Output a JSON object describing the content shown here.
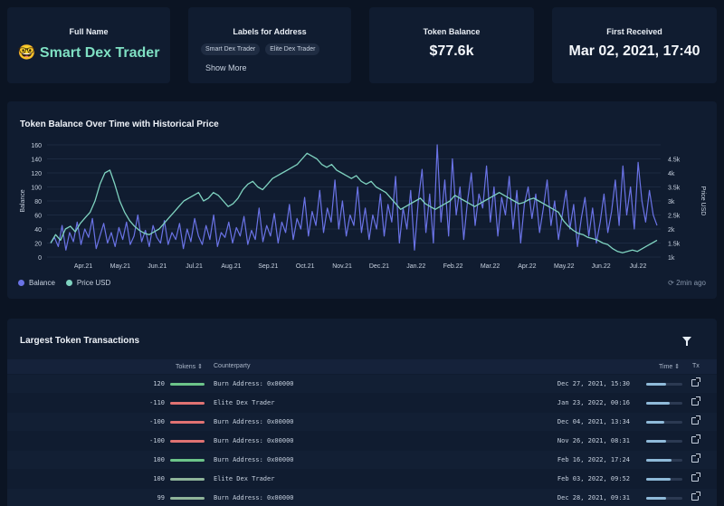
{
  "stats": {
    "full_name": {
      "title": "Full Name",
      "emoji": "🤓",
      "value": "Smart Dex Trader"
    },
    "labels": {
      "title": "Labels for Address",
      "tags": [
        "Smart Dex Trader",
        "Elite Dex Trader"
      ],
      "show_more": "Show More"
    },
    "balance": {
      "title": "Token Balance",
      "value": "$77.6k"
    },
    "first_received": {
      "title": "First Received",
      "value": "Mar 02, 2021, 17:40"
    }
  },
  "chart": {
    "title": "Token Balance Over Time with Historical Price",
    "updated": "2min ago",
    "legend": [
      "Balance",
      "Price USD"
    ]
  },
  "chart_data": {
    "type": "line",
    "title": "Token Balance Over Time with Historical Price",
    "ylabel": "Balance",
    "y2label": "Price USD",
    "ylim": [
      0,
      160
    ],
    "y2lim": [
      1000,
      5000
    ],
    "y_ticks": [
      "0",
      "20",
      "40",
      "60",
      "80",
      "100",
      "120",
      "140",
      "160"
    ],
    "y2_ticks": [
      "1k",
      "1.5k",
      "2k",
      "2.5k",
      "3k",
      "3.5k",
      "4k",
      "4.5k"
    ],
    "x_ticks": [
      "Apr.21",
      "May.21",
      "Jun.21",
      "Jul.21",
      "Aug.21",
      "Sep.21",
      "Oct.21",
      "Nov.21",
      "Dec.21",
      "Jan.22",
      "Feb.22",
      "Mar.22",
      "Apr.22",
      "May.22",
      "Jun.22",
      "Jul.22"
    ],
    "colors": {
      "balance": "#6a73e6",
      "price": "#7fd3c0"
    },
    "legend_position": "bottom-left",
    "series": [
      {
        "name": "Balance",
        "axis": "left",
        "values": [
          20,
          28,
          15,
          45,
          10,
          35,
          22,
          50,
          18,
          40,
          28,
          55,
          12,
          30,
          48,
          20,
          35,
          15,
          42,
          25,
          50,
          18,
          30,
          60,
          22,
          38,
          15,
          45,
          28,
          20,
          52,
          18,
          35,
          25,
          48,
          12,
          40,
          22,
          55,
          30,
          18,
          45,
          25,
          60,
          15,
          35,
          28,
          50,
          20,
          42,
          30,
          58,
          18,
          38,
          25,
          70,
          22,
          45,
          30,
          62,
          20,
          50,
          35,
          75,
          25,
          55,
          40,
          85,
          30,
          65,
          45,
          95,
          35,
          70,
          50,
          110,
          40,
          80,
          30,
          60,
          45,
          100,
          35,
          70,
          25,
          60,
          40,
          90,
          30,
          75,
          50,
          115,
          20,
          70,
          40,
          95,
          10,
          80,
          125,
          35,
          90,
          20,
          160,
          50,
          110,
          30,
          140,
          60,
          100,
          25,
          80,
          120,
          45,
          90,
          70,
          130,
          50,
          100,
          30,
          85,
          60,
          115,
          40,
          95,
          20,
          75,
          100,
          55,
          90,
          35,
          70,
          110,
          45,
          80,
          25,
          60,
          95,
          40,
          75,
          15,
          55,
          85,
          30,
          70,
          20,
          50,
          90,
          35,
          65,
          110,
          45,
          130,
          60,
          100,
          40,
          135,
          80,
          50,
          95,
          60,
          45
        ]
      },
      {
        "name": "Price USD",
        "axis": "right",
        "values": [
          1500,
          1800,
          1600,
          2000,
          2100,
          1900,
          2200,
          2400,
          2600,
          3000,
          3600,
          4000,
          4100,
          3600,
          3000,
          2600,
          2300,
          2100,
          1950,
          1850,
          1800,
          1900,
          2000,
          2200,
          2400,
          2600,
          2800,
          3000,
          3100,
          3200,
          3300,
          3000,
          3100,
          3300,
          3200,
          3000,
          2800,
          2900,
          3100,
          3400,
          3600,
          3700,
          3500,
          3400,
          3600,
          3800,
          3900,
          4000,
          4100,
          4200,
          4300,
          4500,
          4700,
          4600,
          4500,
          4300,
          4200,
          4300,
          4100,
          4000,
          3900,
          3800,
          3900,
          3700,
          3600,
          3700,
          3500,
          3400,
          3300,
          3100,
          2900,
          2700,
          2800,
          2900,
          3000,
          3100,
          2900,
          2800,
          2700,
          2800,
          2900,
          3000,
          3200,
          3100,
          3000,
          2900,
          2800,
          2900,
          3000,
          3100,
          3200,
          3300,
          3200,
          3100,
          3000,
          2900,
          2950,
          3050,
          3100,
          3000,
          2900,
          2800,
          2700,
          2600,
          2300,
          2100,
          1950,
          1850,
          1800,
          1700,
          1650,
          1600,
          1500,
          1450,
          1300,
          1200,
          1150,
          1200,
          1250,
          1200,
          1300,
          1400,
          1500,
          1600
        ]
      }
    ]
  },
  "transactions": {
    "title": "Largest Token Transactions",
    "headers": {
      "tokens": "Tokens ⇕",
      "counterparty": "Counterparty",
      "time": "Time ⇕",
      "tx": "Tx"
    },
    "rows": [
      {
        "amount": "120",
        "counterparty": "Burn Address: 0x00000",
        "time": "Dec 27, 2021, 15:30",
        "kind": "in",
        "time_fill": 0.55
      },
      {
        "amount": "-110",
        "counterparty": "Elite Dex Trader",
        "time": "Jan 23, 2022, 00:16",
        "kind": "out",
        "time_fill": 0.65
      },
      {
        "amount": "-100",
        "counterparty": "Burn Address: 0x00000",
        "time": "Dec 04, 2021, 13:34",
        "kind": "out",
        "time_fill": 0.5
      },
      {
        "amount": "-100",
        "counterparty": "Burn Address: 0x00000",
        "time": "Nov 26, 2021, 08:31",
        "kind": "out",
        "time_fill": 0.55
      },
      {
        "amount": "100",
        "counterparty": "Burn Address: 0x00000",
        "time": "Feb 16, 2022, 17:24",
        "kind": "in",
        "time_fill": 0.7
      },
      {
        "amount": "100",
        "counterparty": "Elite Dex Trader",
        "time": "Feb 03, 2022, 09:52",
        "kind": "mid",
        "time_fill": 0.68
      },
      {
        "amount": "99",
        "counterparty": "Burn Address: 0x00000",
        "time": "Dec 28, 2021, 09:31",
        "kind": "mid",
        "time_fill": 0.55
      }
    ]
  }
}
